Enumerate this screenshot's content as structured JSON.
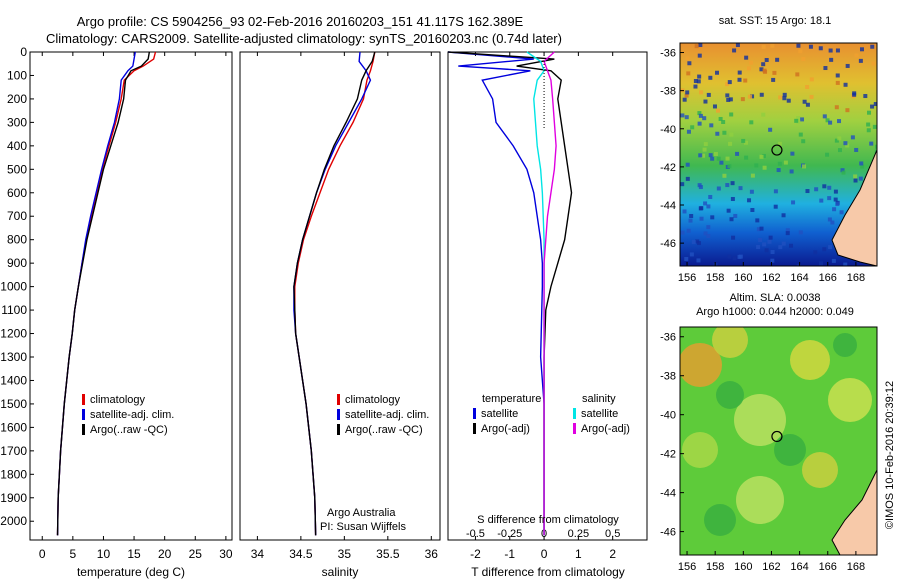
{
  "header": {
    "title_line1": "Argo profile: CS 5904256_93 02-Feb-2016 20160203_151 41.117S 162.389E",
    "title_line2": "Climatology: CARS2009. Satellite-adjusted climatology: synTS_20160203.nc (0.74d later)"
  },
  "colors": {
    "climatology": "#e00000",
    "satellite": "#0000dd",
    "argo": "#000000",
    "sal_satellite": "#00e5e5",
    "sal_argo": "#e000e0"
  },
  "chart_data": [
    {
      "id": "temperature",
      "type": "line",
      "xlabel": "temperature (deg C)",
      "ylabel": "",
      "xlim": [
        -2,
        31
      ],
      "ylim": [
        2080,
        0
      ],
      "xticks": [
        0,
        5,
        10,
        15,
        20,
        25,
        30
      ],
      "yticks": [
        0,
        100,
        200,
        300,
        400,
        500,
        600,
        700,
        800,
        900,
        1000,
        1100,
        1200,
        1300,
        1400,
        1500,
        1600,
        1700,
        1800,
        1900,
        2000
      ],
      "legend": [
        "climatology",
        "satellite-adj. clim.",
        "Argo(..raw -QC)"
      ],
      "series": [
        {
          "name": "climatology",
          "color": "#e00000",
          "x": [
            18.5,
            18.2,
            16.5,
            15.0,
            13.4,
            12.9,
            12.0,
            10.9,
            9.8,
            8.9,
            8.0,
            7.2,
            6.5,
            5.9,
            5.3,
            4.9,
            4.4,
            4.0,
            3.6,
            3.3,
            3.0,
            2.8,
            2.6,
            2.5
          ],
          "y": [
            0,
            30,
            60,
            80,
            120,
            200,
            300,
            400,
            500,
            600,
            700,
            800,
            900,
            1000,
            1100,
            1200,
            1300,
            1400,
            1500,
            1600,
            1700,
            1800,
            1900,
            2060
          ]
        },
        {
          "name": "satellite-adj. clim.",
          "color": "#0000dd",
          "x": [
            15.2,
            15.0,
            14.8,
            14.0,
            12.9,
            12.6,
            11.8,
            10.7,
            9.7,
            8.8,
            7.9,
            7.1,
            6.5,
            5.9,
            5.3,
            4.9,
            4.4,
            4.0,
            3.6,
            3.3,
            3.0,
            2.8,
            2.6,
            2.5
          ],
          "y": [
            0,
            30,
            60,
            80,
            120,
            200,
            300,
            400,
            500,
            600,
            700,
            800,
            900,
            1000,
            1100,
            1200,
            1300,
            1400,
            1500,
            1600,
            1700,
            1800,
            1900,
            2060
          ]
        },
        {
          "name": "Argo(..raw -QC)",
          "color": "#000000",
          "x": [
            17.5,
            17.3,
            16.2,
            14.5,
            13.6,
            13.3,
            12.4,
            11.2,
            10.0,
            9.1,
            8.2,
            7.3,
            6.6,
            5.9,
            5.3,
            4.9,
            4.4,
            4.0,
            3.6,
            3.3,
            3.0,
            2.8,
            2.6,
            2.5
          ],
          "y": [
            0,
            30,
            60,
            80,
            120,
            200,
            300,
            400,
            500,
            600,
            700,
            800,
            900,
            1000,
            1100,
            1200,
            1300,
            1400,
            1500,
            1600,
            1700,
            1800,
            1900,
            2060
          ]
        }
      ]
    },
    {
      "id": "salinity",
      "type": "line",
      "xlabel": "salinity",
      "ylabel": "",
      "xlim": [
        33.8,
        36.1
      ],
      "ylim": [
        2080,
        0
      ],
      "xticks": [
        34,
        34.5,
        35,
        35.5,
        36
      ],
      "yticks": [],
      "legend": [
        "climatology",
        "satellite-adj. clim.",
        "Argo(..raw -QC)"
      ],
      "annotations": [
        "Argo Australia",
        "PI: Susan Wijffels"
      ],
      "series": [
        {
          "name": "climatology",
          "color": "#e00000",
          "x": [
            35.35,
            35.33,
            35.3,
            35.26,
            35.22,
            35.1,
            34.95,
            34.82,
            34.72,
            34.62,
            34.53,
            34.47,
            34.43,
            34.43,
            34.44,
            34.48,
            34.52,
            34.56,
            34.59,
            34.62,
            34.64,
            34.66,
            34.67
          ],
          "y": [
            0,
            40,
            80,
            120,
            200,
            300,
            400,
            500,
            600,
            700,
            800,
            900,
            1000,
            1100,
            1200,
            1300,
            1400,
            1500,
            1600,
            1700,
            1800,
            1900,
            2060
          ]
        },
        {
          "name": "satellite-adj. clim.",
          "color": "#0000dd",
          "x": [
            35.18,
            35.17,
            35.25,
            35.3,
            35.2,
            35.05,
            34.9,
            34.78,
            34.68,
            34.6,
            34.52,
            34.46,
            34.42,
            34.42,
            34.44,
            34.48,
            34.52,
            34.56,
            34.59,
            34.62,
            34.64,
            34.66,
            34.67
          ],
          "y": [
            0,
            40,
            80,
            120,
            200,
            300,
            400,
            500,
            600,
            700,
            800,
            900,
            1000,
            1100,
            1200,
            1300,
            1400,
            1500,
            1600,
            1700,
            1800,
            1900,
            2060
          ]
        },
        {
          "name": "Argo(..raw -QC)",
          "color": "#000000",
          "x": [
            35.35,
            35.32,
            35.25,
            35.2,
            35.15,
            35.02,
            34.88,
            34.77,
            34.68,
            34.6,
            34.52,
            34.46,
            34.42,
            34.43,
            34.44,
            34.48,
            34.52,
            34.56,
            34.59,
            34.62,
            34.64,
            34.66,
            34.67
          ],
          "y": [
            0,
            40,
            80,
            120,
            200,
            300,
            400,
            500,
            600,
            700,
            800,
            900,
            1000,
            1100,
            1200,
            1300,
            1400,
            1500,
            1600,
            1700,
            1800,
            1900,
            2060
          ]
        }
      ]
    },
    {
      "id": "difference",
      "type": "line",
      "xlabel": "T difference from climatology",
      "xlabel_top": "S difference from climatology",
      "xlim": [
        -2.8,
        3.0
      ],
      "ylim": [
        2080,
        0
      ],
      "xticks": [
        -2,
        -1,
        0,
        1,
        2
      ],
      "xticks_top": [
        "-0.5",
        "-0.25",
        "0",
        "0.25",
        "0.5"
      ],
      "legend_temperature": {
        "title": "temperature",
        "items": [
          "satellite",
          "Argo(-adj)"
        ]
      },
      "legend_salinity": {
        "title": "salinity",
        "items": [
          "satellite",
          "Argo(-adj)"
        ]
      },
      "series": [
        {
          "name": "temperature satellite",
          "color": "#0000dd",
          "x": [
            -3.0,
            -0.3,
            -2.5,
            -0.4,
            -1.8,
            -1.5,
            -1.4,
            -0.9,
            -0.5,
            -0.3,
            -0.2,
            -0.1,
            -0.05,
            -0.05,
            -0.1,
            -0.05,
            0,
            0,
            0,
            0
          ],
          "y": [
            0,
            30,
            60,
            80,
            120,
            200,
            300,
            400,
            500,
            600,
            700,
            800,
            900,
            1000,
            1300,
            1400,
            1500,
            1700,
            1900,
            2060
          ]
        },
        {
          "name": "temperature Argo(-adj)",
          "color": "#000000",
          "x": [
            -3.0,
            0.3,
            -0.8,
            0.2,
            0.5,
            0.4,
            0.5,
            0.6,
            0.7,
            0.8,
            0.7,
            0.6,
            0.4,
            0.2,
            0.05,
            0,
            0,
            0,
            0
          ],
          "y": [
            0,
            30,
            60,
            80,
            120,
            200,
            300,
            400,
            500,
            600,
            700,
            800,
            900,
            1000,
            1100,
            1300,
            1500,
            1700,
            2060
          ]
        },
        {
          "name": "salinity satellite",
          "color": "#00e5e5",
          "x": [
            -0.5,
            -0.1,
            0.0,
            -0.2,
            -0.3,
            -0.25,
            -0.2,
            -0.1,
            -0.05,
            0,
            0,
            0,
            0
          ],
          "y": [
            0,
            40,
            80,
            120,
            200,
            300,
            400,
            500,
            600,
            800,
            1000,
            1500,
            2060
          ]
        },
        {
          "name": "salinity Argo(-adj)",
          "color": "#e000e0",
          "x": [
            0.3,
            0.0,
            0.1,
            0.2,
            0.25,
            0.3,
            0.35,
            0.3,
            0.2,
            0.1,
            0.05,
            0,
            0,
            0
          ],
          "y": [
            0,
            40,
            80,
            120,
            200,
            300,
            400,
            500,
            600,
            700,
            800,
            900,
            1200,
            2060
          ]
        }
      ]
    },
    {
      "id": "sst_map",
      "type": "heatmap",
      "title": "sat. SST: 15  Argo: 18.1",
      "xticks": [
        156,
        158,
        160,
        162,
        164,
        166,
        168
      ],
      "yticks": [
        -36,
        -38,
        -40,
        -42,
        -44,
        -46
      ],
      "xlim": [
        155.5,
        169.5
      ],
      "ylim": [
        -47.2,
        -35.5
      ],
      "marker": {
        "lon": 162.389,
        "lat": -41.117
      }
    },
    {
      "id": "sla_map",
      "type": "heatmap",
      "title_line1": "Altim. SLA: 0.0038",
      "title_line2": "Argo h1000: 0.044 h2000: 0.049",
      "xticks": [
        156,
        158,
        160,
        162,
        164,
        166,
        168
      ],
      "yticks": [
        -36,
        -38,
        -40,
        -42,
        -44,
        -46
      ],
      "xlim": [
        155.5,
        169.5
      ],
      "ylim": [
        -47.2,
        -35.5
      ],
      "marker": {
        "lon": 162.389,
        "lat": -41.117
      }
    }
  ],
  "footer": {
    "credit": "©IMOS 10-Feb-2016 20:39:12"
  }
}
